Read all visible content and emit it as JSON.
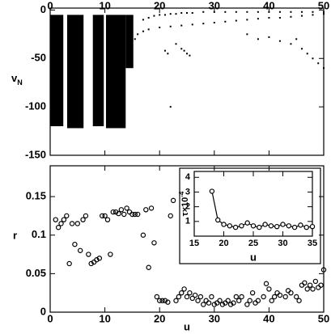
{
  "chart_data": [
    {
      "type": "scatter",
      "ylabel": "v",
      "ylabel_subscript": "N",
      "xlim": [
        0,
        50
      ],
      "xticks": [
        0,
        10,
        20,
        30,
        40,
        50
      ],
      "ylim": [
        -150,
        2
      ],
      "yticks": [
        0,
        -50,
        -100,
        -150
      ],
      "color": "#000000",
      "bands": [
        {
          "x": [
            0,
            2.4
          ],
          "y": [
            -120,
            -5
          ]
        },
        {
          "x": [
            3.1,
            6.1
          ],
          "y": [
            -122,
            -5
          ]
        },
        {
          "x": [
            7.8,
            9.8
          ],
          "y": [
            -120,
            -5
          ]
        },
        {
          "x": [
            10.2,
            13.8
          ],
          "y": [
            -122,
            -5
          ]
        },
        {
          "x": [
            13.8,
            15.2
          ],
          "y": [
            -60,
            -5
          ]
        }
      ],
      "series": [
        {
          "x": [
            15.5,
            16,
            17,
            18,
            20,
            22,
            24,
            26,
            28,
            30,
            32,
            34,
            36,
            38,
            40,
            42,
            44,
            46,
            48,
            50
          ],
          "values": [
            -30,
            -25,
            -22,
            -20,
            -18,
            -17,
            -16,
            -15,
            -14,
            -13,
            -12,
            -11,
            -10,
            -9,
            -8,
            -8,
            -7,
            -6,
            -5,
            -4
          ]
        },
        {
          "x": [
            17,
            18,
            19,
            20,
            21,
            22,
            23,
            24,
            25,
            26,
            28,
            30,
            32,
            34,
            36,
            38,
            40,
            42,
            44,
            46,
            48,
            50
          ],
          "values": [
            -10,
            -8,
            -6,
            -5,
            -5,
            -4,
            -4,
            -3,
            -3,
            -3,
            -2,
            -2,
            -2,
            -2,
            -2,
            -2,
            -2,
            -2,
            -2,
            -2,
            -2,
            -2
          ]
        },
        {
          "x": [
            21,
            21.5,
            22,
            23,
            24,
            24.5,
            25,
            25.5,
            36,
            38,
            40,
            42,
            44,
            45,
            46,
            47,
            48,
            49,
            50,
            1.5,
            4,
            9,
            12
          ],
          "values": [
            -42,
            -45,
            -100,
            -35,
            -40,
            -42,
            -45,
            -47,
            -25,
            -30,
            -28,
            -32,
            -35,
            -30,
            -40,
            -45,
            -50,
            -55,
            -60,
            -70,
            -60,
            -62,
            -58
          ]
        }
      ]
    },
    {
      "type": "scatter",
      "xlabel": "u",
      "ylabel": "r",
      "xlim": [
        0,
        50
      ],
      "xticks": [
        0,
        10,
        20,
        30,
        40,
        50
      ],
      "ylim": [
        0,
        0.19
      ],
      "yticks": [
        0,
        0.05,
        0.1,
        0.15
      ],
      "color": "#000000",
      "x": [
        1,
        1.5,
        2,
        2.5,
        3,
        3.5,
        4,
        4.5,
        5,
        5.5,
        6,
        6.5,
        7,
        7.5,
        8,
        8.5,
        9,
        9.5,
        10,
        10.5,
        11,
        11.5,
        12,
        12.5,
        13,
        13.5,
        14,
        14.5,
        15,
        15.5,
        16,
        17,
        17.5,
        18,
        18.5,
        19,
        19.5,
        20,
        20.5,
        21,
        21.5,
        22,
        22.5,
        23,
        23.5,
        24,
        24.5,
        25,
        25.5,
        26,
        26.5,
        27,
        27.5,
        28,
        28.5,
        29,
        29.5,
        30,
        30.5,
        31,
        31.5,
        32,
        32.5,
        33,
        33.5,
        34,
        34.5,
        35,
        36,
        36.5,
        37,
        37.5,
        38,
        39,
        39.5,
        40,
        40.5,
        41,
        41.5,
        42,
        43,
        43.5,
        44,
        45,
        45.5,
        46,
        46.5,
        47,
        47.5,
        48,
        48.5,
        49,
        49.5,
        50
      ],
      "values": [
        0.12,
        0.11,
        0.115,
        0.12,
        0.125,
        0.063,
        0.115,
        0.088,
        0.115,
        0.08,
        0.12,
        0.125,
        0.075,
        0.063,
        0.065,
        0.068,
        0.07,
        0.125,
        0.125,
        0.12,
        0.075,
        0.13,
        0.13,
        0.128,
        0.133,
        0.127,
        0.135,
        0.13,
        0.127,
        0.127,
        0.127,
        0.1,
        0.133,
        0.058,
        0.135,
        0.09,
        0.02,
        0.015,
        0.015,
        0.015,
        0.013,
        0.125,
        0.145,
        0.015,
        0.02,
        0.025,
        0.03,
        0.02,
        0.025,
        0.018,
        0.022,
        0.015,
        0.02,
        0.01,
        0.015,
        0.012,
        0.02,
        0.01,
        0.012,
        0.015,
        0.01,
        0.012,
        0.015,
        0.01,
        0.012,
        0.02,
        0.015,
        0.02,
        0.01,
        0.015,
        0.025,
        0.012,
        0.015,
        0.02,
        0.037,
        0.03,
        0.015,
        0.02,
        0.025,
        0.022,
        0.02,
        0.028,
        0.025,
        0.02,
        0.015,
        0.035,
        0.038,
        0.03,
        0.035,
        0.03,
        0.04,
        0.032,
        0.035,
        0.055
      ]
    },
    {
      "type": "line",
      "xlabel": "u",
      "ylabel": "τ×10",
      "ylabel_superscript": "-4",
      "xlim": [
        15,
        35
      ],
      "xticks": [
        15,
        20,
        25,
        30,
        35
      ],
      "ylim": [
        0,
        4.4
      ],
      "yticks": [
        1,
        2,
        3,
        4
      ],
      "color": "#000000",
      "x": [
        18,
        19,
        20,
        21,
        22,
        23,
        24,
        25,
        26,
        27,
        28,
        29,
        30,
        31,
        32,
        33,
        34,
        35
      ],
      "values": [
        3.05,
        1.1,
        0.8,
        0.7,
        0.6,
        0.7,
        0.9,
        0.7,
        0.6,
        0.8,
        0.7,
        0.65,
        0.8,
        0.7,
        0.6,
        0.75,
        0.6,
        0.65
      ]
    }
  ]
}
